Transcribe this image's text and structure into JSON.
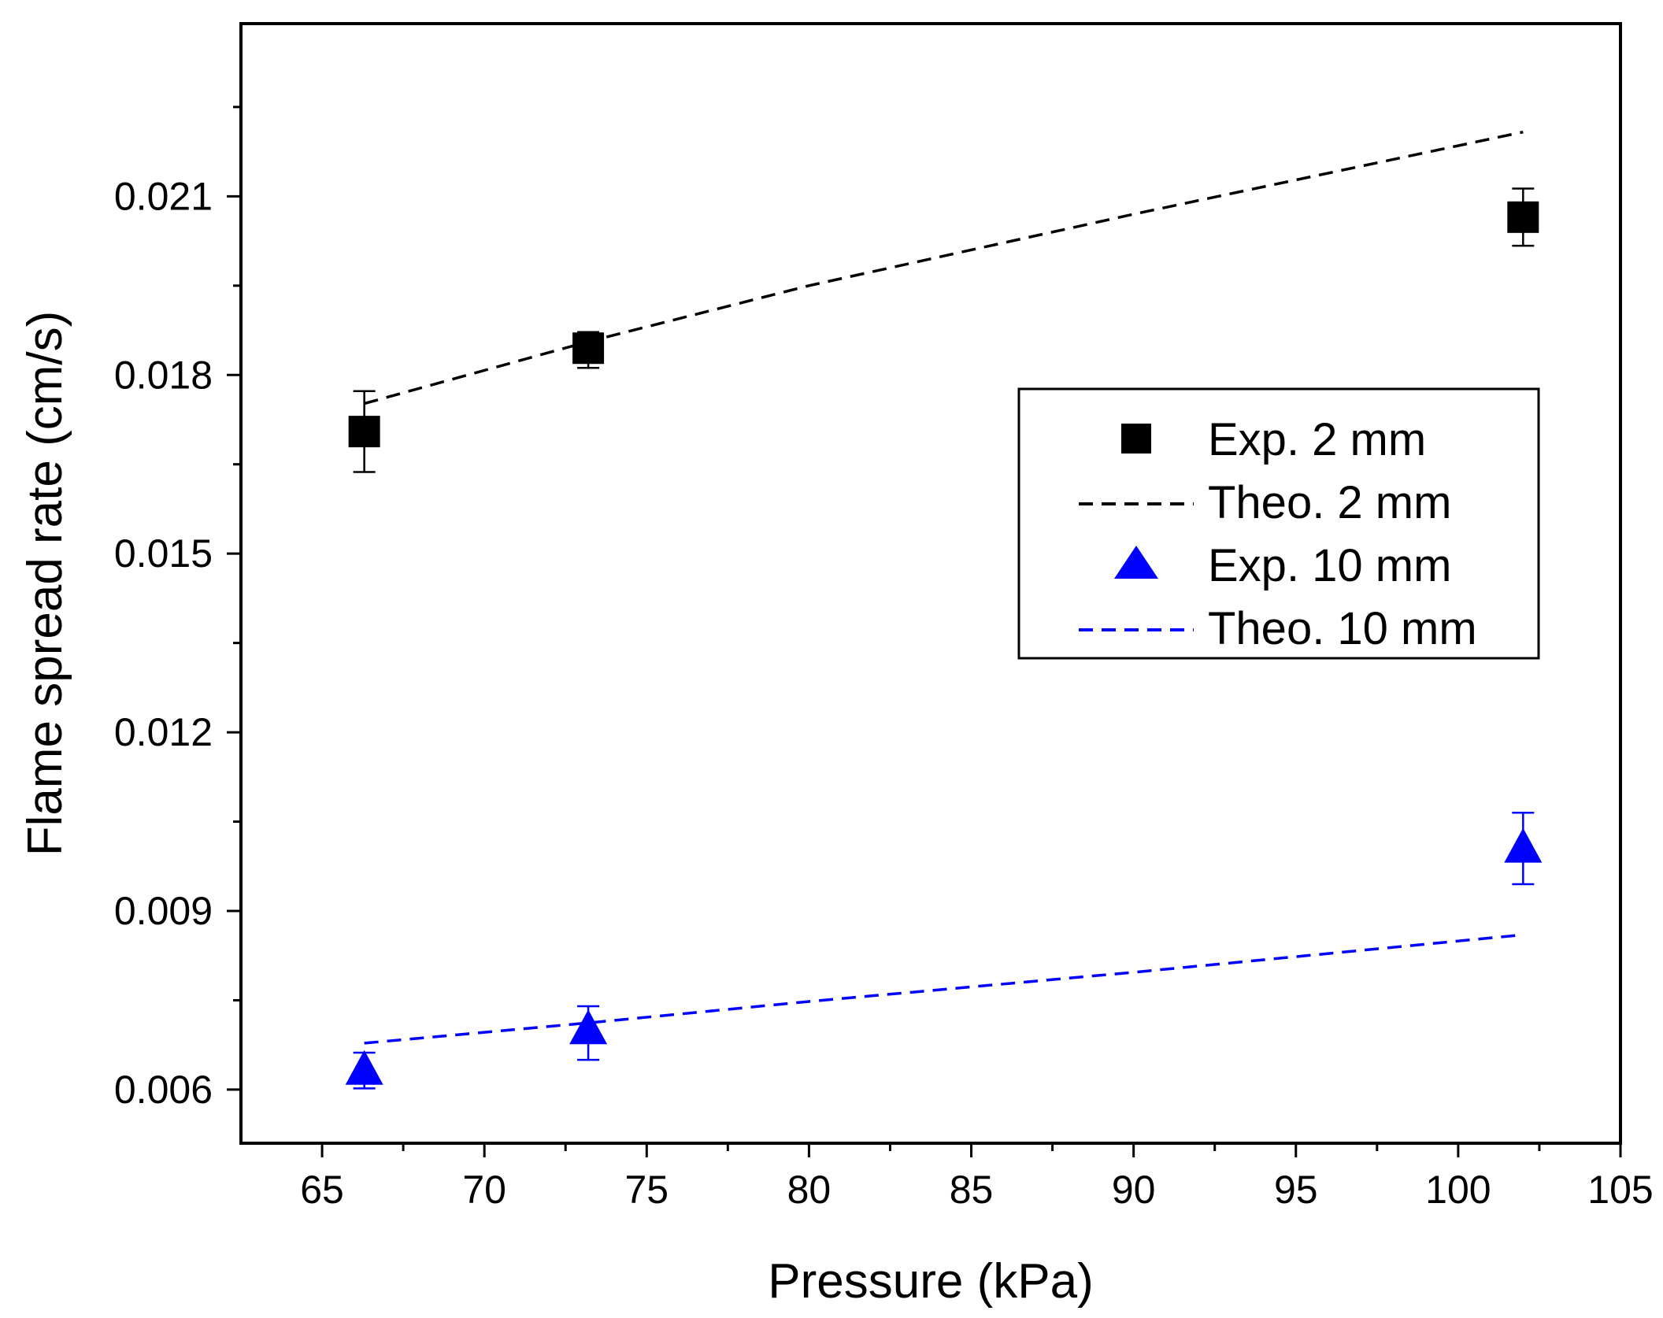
{
  "chart_data": {
    "type": "scatter",
    "title": "",
    "xlabel": "Pressure (kPa)",
    "ylabel": "Flame spread rate (cm/s)",
    "xlim": [
      62.5,
      105
    ],
    "ylim": [
      0.0051,
      0.0239
    ],
    "xticks": [
      65,
      70,
      75,
      80,
      85,
      90,
      95,
      100,
      105
    ],
    "xtick_labels": [
      "65",
      "70",
      "75",
      "80",
      "85",
      "90",
      "95",
      "100",
      "105"
    ],
    "yticks": [
      0.006,
      0.009,
      0.012,
      0.015,
      0.018,
      0.021
    ],
    "ytick_labels": [
      "0.006",
      "0.009",
      "0.012",
      "0.015",
      "0.018",
      "0.021"
    ],
    "legend_position": "center-right",
    "series": [
      {
        "name": "Exp. 2 mm",
        "kind": "marker",
        "marker": "square",
        "color": "#000000",
        "x": [
          66.3,
          73.2,
          102.0
        ],
        "y": [
          0.01705,
          0.01845,
          0.02065
        ],
        "err_low": [
          0.00068,
          0.00033,
          0.00048
        ],
        "err_high": [
          0.00068,
          0.00027,
          0.00048
        ]
      },
      {
        "name": "Theo. 2 mm",
        "kind": "dashed-line",
        "color": "#000000",
        "x": [
          66.3,
          73.2,
          80,
          90,
          102.0
        ],
        "y": [
          0.01752,
          0.01856,
          0.0195,
          0.0207,
          0.02208
        ]
      },
      {
        "name": "Exp. 10 mm",
        "kind": "marker",
        "marker": "triangle",
        "color": "#0000ff",
        "x": [
          66.3,
          73.2,
          102.0
        ],
        "y": [
          0.00632,
          0.007,
          0.01005
        ],
        "err_low": [
          0.0003,
          0.0005,
          0.0006
        ],
        "err_high": [
          0.0003,
          0.0004,
          0.0006
        ]
      },
      {
        "name": "Theo. 10 mm",
        "kind": "dashed-line",
        "color": "#0000ff",
        "x": [
          66.3,
          73.2,
          80,
          90,
          102.0
        ],
        "y": [
          0.00678,
          0.00712,
          0.00748,
          0.00797,
          0.0086
        ]
      }
    ]
  }
}
